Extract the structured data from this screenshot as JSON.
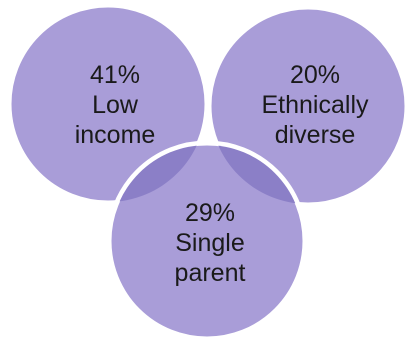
{
  "circles": [
    {
      "percent": "41%",
      "line1": "Low",
      "line2": "income"
    },
    {
      "percent": "20%",
      "line1": "Ethnically",
      "line2": "diverse"
    },
    {
      "percent": "29%",
      "line1": "Single",
      "line2": "parent"
    }
  ],
  "colors": {
    "fill": "#a99dd8",
    "overlap": "#8b7fc7",
    "outline": "#ffffff"
  }
}
